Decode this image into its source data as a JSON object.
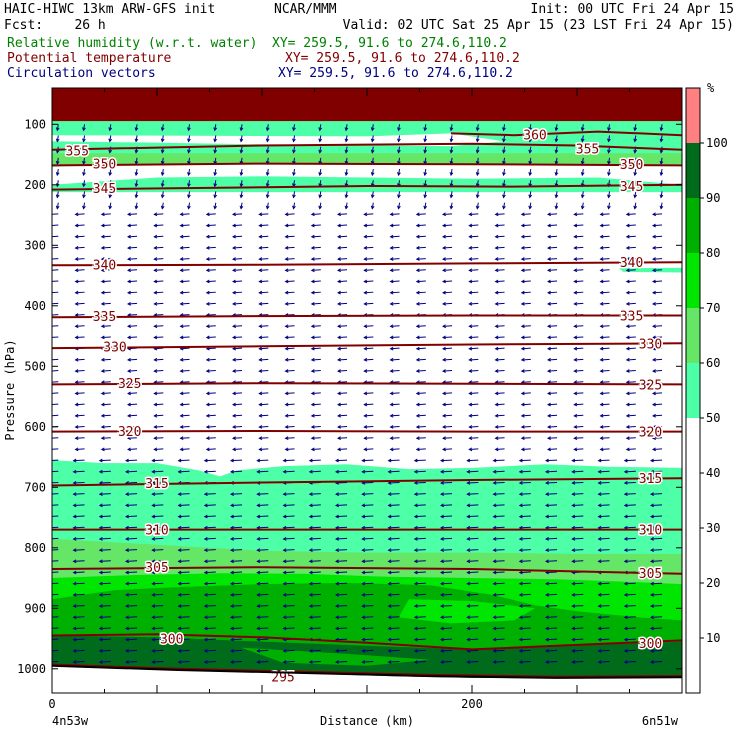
{
  "header": {
    "line1_left": "HAIC-HIWC 13km ARW-GFS init",
    "line1_mid": "NCAR/MMM",
    "line1_right": "Init: 00 UTC Fri 24 Apr 15",
    "line2_left": "Fcst:    26 h",
    "line2_right": "Valid: 02 UTC Sat 25 Apr 15 (23 LST Fri 24 Apr 15)",
    "field1": "Relative humidity (w.r.t. water)",
    "field1_xy": "XY= 259.5, 91.6 to 274.6,110.2",
    "field2": "Potential temperature",
    "field2_xy": "XY= 259.5, 91.6 to 274.6,110.2",
    "field3": "Circulation vectors",
    "field3_xy": "XY= 259.5, 91.6 to 274.6,110.2",
    "color_field1": "#008000",
    "color_field2": "#800000",
    "color_field3": "#000080"
  },
  "chart_data": {
    "type": "heatmap",
    "ylabel": "Pressure (hPa)",
    "xlabel": "Distance (km)",
    "x_ticks": [
      0,
      200
    ],
    "x_range": [
      0,
      300
    ],
    "y_ticks": [
      100,
      200,
      300,
      400,
      500,
      600,
      700,
      800,
      900,
      1000
    ],
    "y_range": [
      40,
      1040
    ],
    "x_start_label": "4n53w",
    "x_end_label": "6n51w",
    "colorbar": {
      "unit": "%",
      "ticks": [
        10,
        20,
        30,
        40,
        50,
        60,
        70,
        80,
        90,
        100
      ],
      "bins": [
        {
          "from": 0,
          "to": 50,
          "color": "#ffffff"
        },
        {
          "from": 50,
          "to": 60,
          "color": "#4dffa6"
        },
        {
          "from": 60,
          "to": 70,
          "color": "#66e666"
        },
        {
          "from": 70,
          "to": 80,
          "color": "#00e600"
        },
        {
          "from": 80,
          "to": 90,
          "color": "#00b000"
        },
        {
          "from": 90,
          "to": 100,
          "color": "#006b1a"
        },
        {
          "from": 100,
          "to": 110,
          "color": "#ff8080"
        }
      ]
    },
    "rh_regions": [
      {
        "bin": 6,
        "color": "#800000",
        "pts": [
          [
            0,
            40
          ],
          [
            300,
            40
          ],
          [
            300,
            95
          ],
          [
            0,
            95
          ]
        ]
      },
      {
        "bin": 1,
        "color": "#4dffa6",
        "pts": [
          [
            0,
            95
          ],
          [
            300,
            95
          ],
          [
            300,
            212
          ],
          [
            0,
            212
          ]
        ]
      },
      {
        "bin": 0,
        "color": "#ffffff",
        "pts": [
          [
            0,
            118
          ],
          [
            150,
            120
          ],
          [
            190,
            115
          ],
          [
            215,
            128
          ],
          [
            190,
            136
          ],
          [
            100,
            133
          ],
          [
            0,
            128
          ]
        ]
      },
      {
        "bin": 0,
        "color": "#ffffff",
        "pts": [
          [
            0,
            170
          ],
          [
            40,
            165
          ],
          [
            80,
            167
          ],
          [
            120,
            164
          ],
          [
            160,
            166
          ],
          [
            200,
            163
          ],
          [
            240,
            166
          ],
          [
            270,
            165
          ],
          [
            300,
            168
          ],
          [
            300,
            200
          ],
          [
            260,
            188
          ],
          [
            200,
            190
          ],
          [
            150,
            188
          ],
          [
            100,
            186
          ],
          [
            50,
            188
          ],
          [
            0,
            200
          ]
        ]
      },
      {
        "bin": 2,
        "color": "#66e666",
        "pts": [
          [
            0,
            148
          ],
          [
            300,
            148
          ],
          [
            300,
            166
          ],
          [
            0,
            166
          ]
        ]
      },
      {
        "bin": 1,
        "color": "#4dffa6",
        "pts": [
          [
            270,
            338
          ],
          [
            300,
            337
          ],
          [
            300,
            345
          ],
          [
            272,
            344
          ]
        ]
      },
      {
        "bin": 1,
        "color": "#4dffa6",
        "pts": [
          [
            0,
            655
          ],
          [
            25,
            660
          ],
          [
            50,
            660
          ],
          [
            70,
            672
          ],
          [
            80,
            682
          ],
          [
            88,
            672
          ],
          [
            110,
            665
          ],
          [
            140,
            662
          ],
          [
            170,
            670
          ],
          [
            200,
            668
          ],
          [
            235,
            662
          ],
          [
            265,
            666
          ],
          [
            300,
            668
          ],
          [
            300,
            1040
          ],
          [
            0,
            1040
          ]
        ]
      },
      {
        "bin": 2,
        "color": "#66e666",
        "pts": [
          [
            0,
            785
          ],
          [
            50,
            795
          ],
          [
            100,
            805
          ],
          [
            150,
            808
          ],
          [
            200,
            808
          ],
          [
            250,
            810
          ],
          [
            300,
            810
          ],
          [
            300,
            1040
          ],
          [
            0,
            1040
          ]
        ]
      },
      {
        "bin": 3,
        "color": "#00e600",
        "pts": [
          [
            0,
            850
          ],
          [
            40,
            845
          ],
          [
            80,
            842
          ],
          [
            120,
            843
          ],
          [
            160,
            848
          ],
          [
            200,
            850
          ],
          [
            240,
            852
          ],
          [
            280,
            857
          ],
          [
            300,
            860
          ],
          [
            300,
            1040
          ],
          [
            0,
            1040
          ]
        ]
      },
      {
        "bin": 4,
        "color": "#00b000",
        "pts": [
          [
            0,
            885
          ],
          [
            30,
            870
          ],
          [
            60,
            865
          ],
          [
            100,
            860
          ],
          [
            140,
            858
          ],
          [
            180,
            862
          ],
          [
            210,
            878
          ],
          [
            230,
            895
          ],
          [
            250,
            905
          ],
          [
            280,
            915
          ],
          [
            300,
            920
          ],
          [
            300,
            1040
          ],
          [
            0,
            1040
          ]
        ]
      },
      {
        "bin": 3,
        "color": "#00e600",
        "pts": [
          [
            170,
            885
          ],
          [
            200,
            888
          ],
          [
            230,
            900
          ],
          [
            220,
            920
          ],
          [
            190,
            925
          ],
          [
            165,
            915
          ]
        ]
      },
      {
        "bin": 5,
        "color": "#006b1a",
        "pts": [
          [
            0,
            945
          ],
          [
            50,
            948
          ],
          [
            100,
            955
          ],
          [
            150,
            962
          ],
          [
            200,
            968
          ],
          [
            240,
            962
          ],
          [
            280,
            958
          ],
          [
            300,
            955
          ],
          [
            300,
            1040
          ],
          [
            0,
            1040
          ]
        ]
      },
      {
        "bin": 4,
        "color": "#00b000",
        "pts": [
          [
            90,
            965
          ],
          [
            140,
            975
          ],
          [
            180,
            985
          ],
          [
            150,
            995
          ],
          [
            110,
            990
          ]
        ]
      },
      {
        "bin": 0,
        "color": "#ffffff",
        "pts": [
          [
            0,
            993
          ],
          [
            40,
            998
          ],
          [
            80,
            1003
          ],
          [
            120,
            1008
          ],
          [
            160,
            1012
          ],
          [
            200,
            1015
          ],
          [
            240,
            1015
          ],
          [
            280,
            1015
          ],
          [
            300,
            1015
          ],
          [
            300,
            1040
          ],
          [
            0,
            1040
          ]
        ]
      }
    ],
    "theta_contours": [
      {
        "value": 355,
        "label": "355",
        "pts": [
          [
            0,
            142
          ],
          [
            100,
            135
          ],
          [
            200,
            132
          ],
          [
            250,
            135
          ],
          [
            300,
            142
          ]
        ],
        "label_at": [
          [
            12,
            143
          ],
          [
            255,
            140
          ]
        ]
      },
      {
        "value": 360,
        "label": "360",
        "pts": [
          [
            190,
            115
          ],
          [
            220,
            118
          ],
          [
            260,
            112
          ],
          [
            300,
            118
          ]
        ],
        "label_at": [
          [
            230,
            117
          ]
        ]
      },
      {
        "value": 350,
        "label": "350",
        "pts": [
          [
            0,
            168
          ],
          [
            100,
            165
          ],
          [
            200,
            166
          ],
          [
            300,
            168
          ]
        ],
        "label_at": [
          [
            25,
            165
          ],
          [
            276,
            166
          ]
        ]
      },
      {
        "value": 345,
        "label": "345",
        "pts": [
          [
            0,
            208
          ],
          [
            80,
            205
          ],
          [
            150,
            202
          ],
          [
            220,
            203
          ],
          [
            300,
            200
          ]
        ],
        "label_at": [
          [
            25,
            205
          ],
          [
            276,
            202
          ]
        ]
      },
      {
        "value": 340,
        "label": "340",
        "pts": [
          [
            0,
            333
          ],
          [
            100,
            332
          ],
          [
            200,
            330
          ],
          [
            300,
            328
          ]
        ],
        "label_at": [
          [
            25,
            332
          ],
          [
            276,
            328
          ]
        ]
      },
      {
        "value": 335,
        "label": "335",
        "pts": [
          [
            0,
            419
          ],
          [
            100,
            417
          ],
          [
            200,
            416
          ],
          [
            300,
            416
          ]
        ],
        "label_at": [
          [
            25,
            417
          ],
          [
            276,
            416
          ]
        ]
      },
      {
        "value": 330,
        "label": "330",
        "pts": [
          [
            0,
            470
          ],
          [
            100,
            467
          ],
          [
            200,
            464
          ],
          [
            300,
            462
          ]
        ],
        "label_at": [
          [
            30,
            467
          ],
          [
            285,
            462
          ]
        ]
      },
      {
        "value": 325,
        "label": "325",
        "pts": [
          [
            0,
            530
          ],
          [
            100,
            528
          ],
          [
            200,
            529
          ],
          [
            300,
            530
          ]
        ],
        "label_at": [
          [
            37,
            528
          ],
          [
            285,
            530
          ]
        ]
      },
      {
        "value": 320,
        "label": "320",
        "pts": [
          [
            0,
            608
          ],
          [
            100,
            607
          ],
          [
            200,
            608
          ],
          [
            300,
            608
          ]
        ],
        "label_at": [
          [
            37,
            607
          ],
          [
            285,
            608
          ]
        ]
      },
      {
        "value": 315,
        "label": "315",
        "pts": [
          [
            0,
            697
          ],
          [
            100,
            692
          ],
          [
            200,
            688
          ],
          [
            300,
            685
          ]
        ],
        "label_at": [
          [
            50,
            693
          ],
          [
            285,
            685
          ]
        ]
      },
      {
        "value": 310,
        "label": "310",
        "pts": [
          [
            0,
            770
          ],
          [
            100,
            770
          ],
          [
            200,
            770
          ],
          [
            300,
            770
          ]
        ],
        "label_at": [
          [
            50,
            770
          ],
          [
            285,
            770
          ]
        ]
      },
      {
        "value": 305,
        "label": "305",
        "pts": [
          [
            0,
            835
          ],
          [
            100,
            832
          ],
          [
            200,
            835
          ],
          [
            300,
            843
          ]
        ],
        "label_at": [
          [
            50,
            832
          ],
          [
            285,
            842
          ]
        ]
      },
      {
        "value": 300,
        "label": "300",
        "pts": [
          [
            0,
            945
          ],
          [
            50,
            943
          ],
          [
            100,
            948
          ],
          [
            150,
            957
          ],
          [
            200,
            968
          ],
          [
            240,
            962
          ],
          [
            300,
            953
          ]
        ],
        "label_at": [
          [
            57,
            950
          ],
          [
            285,
            957
          ]
        ]
      },
      {
        "value": 295,
        "label": "295",
        "pts": [
          [
            0,
            993
          ],
          [
            60,
            1000
          ],
          [
            120,
            1005
          ],
          [
            180,
            1010
          ],
          [
            240,
            1013
          ],
          [
            300,
            1012
          ]
        ],
        "label_at": [
          [
            110,
            1013
          ]
        ]
      }
    ],
    "terrain_line": [
      [
        0,
        995
      ],
      [
        60,
        1002
      ],
      [
        120,
        1007
      ],
      [
        180,
        1012
      ],
      [
        240,
        1015
      ],
      [
        300,
        1014
      ]
    ],
    "vectors": {
      "note_direction": "westward (easterly flow) below 250 hPa, southward arrows aloft"
    }
  }
}
